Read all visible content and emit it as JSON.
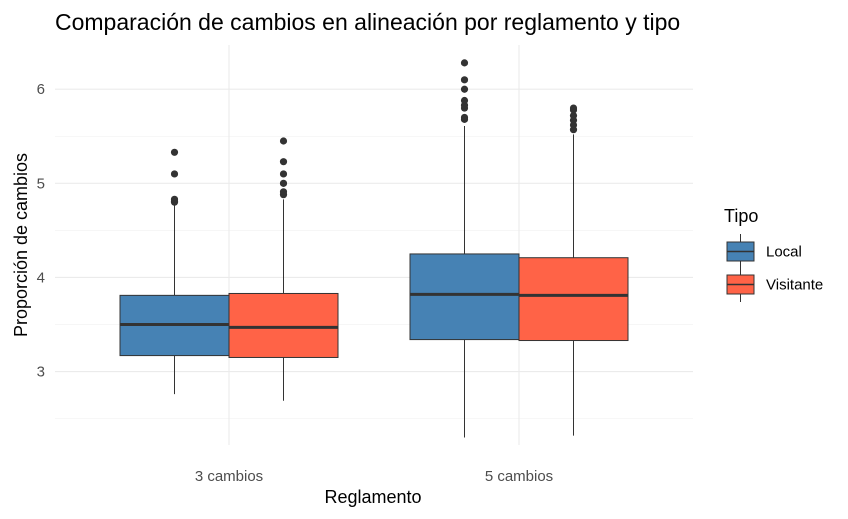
{
  "chart_data": {
    "type": "boxplot",
    "title": "Comparación de cambios en alineación por reglamento y tipo",
    "xlabel": "Reglamento",
    "ylabel": "Proporción de cambios",
    "categories": [
      "3 cambios",
      "5 cambios"
    ],
    "yticks": [
      3,
      4,
      5,
      6
    ],
    "ylim": [
      2.22,
      6.47
    ],
    "grid": true,
    "legend": {
      "title": "Tipo",
      "position": "right",
      "entries": [
        "Local",
        "Visitante"
      ]
    },
    "series": [
      {
        "name": "Local",
        "color": "#4682B4",
        "boxes": [
          {
            "category": "3 cambios",
            "min": 2.76,
            "q1": 3.17,
            "median": 3.5,
            "q3": 3.81,
            "max": 4.78,
            "outliers": [
              4.8,
              4.81,
              4.83,
              5.1,
              5.33
            ]
          },
          {
            "category": "5 cambios",
            "min": 2.3,
            "q1": 3.34,
            "median": 3.82,
            "q3": 4.25,
            "max": 5.61,
            "outliers": [
              5.68,
              5.7,
              5.8,
              5.83,
              5.88,
              6.0,
              6.1,
              6.28
            ]
          }
        ]
      },
      {
        "name": "Visitante",
        "color": "#FF6347",
        "boxes": [
          {
            "category": "3 cambios",
            "min": 2.69,
            "q1": 3.15,
            "median": 3.47,
            "q3": 3.83,
            "max": 4.83,
            "outliers": [
              4.88,
              4.91,
              5.0,
              5.1,
              5.23,
              5.45
            ]
          },
          {
            "category": "5 cambios",
            "min": 2.32,
            "q1": 3.33,
            "median": 3.81,
            "q3": 4.21,
            "max": 5.52,
            "outliers": [
              5.57,
              5.62,
              5.67,
              5.72,
              5.78,
              5.8
            ]
          }
        ]
      }
    ]
  }
}
